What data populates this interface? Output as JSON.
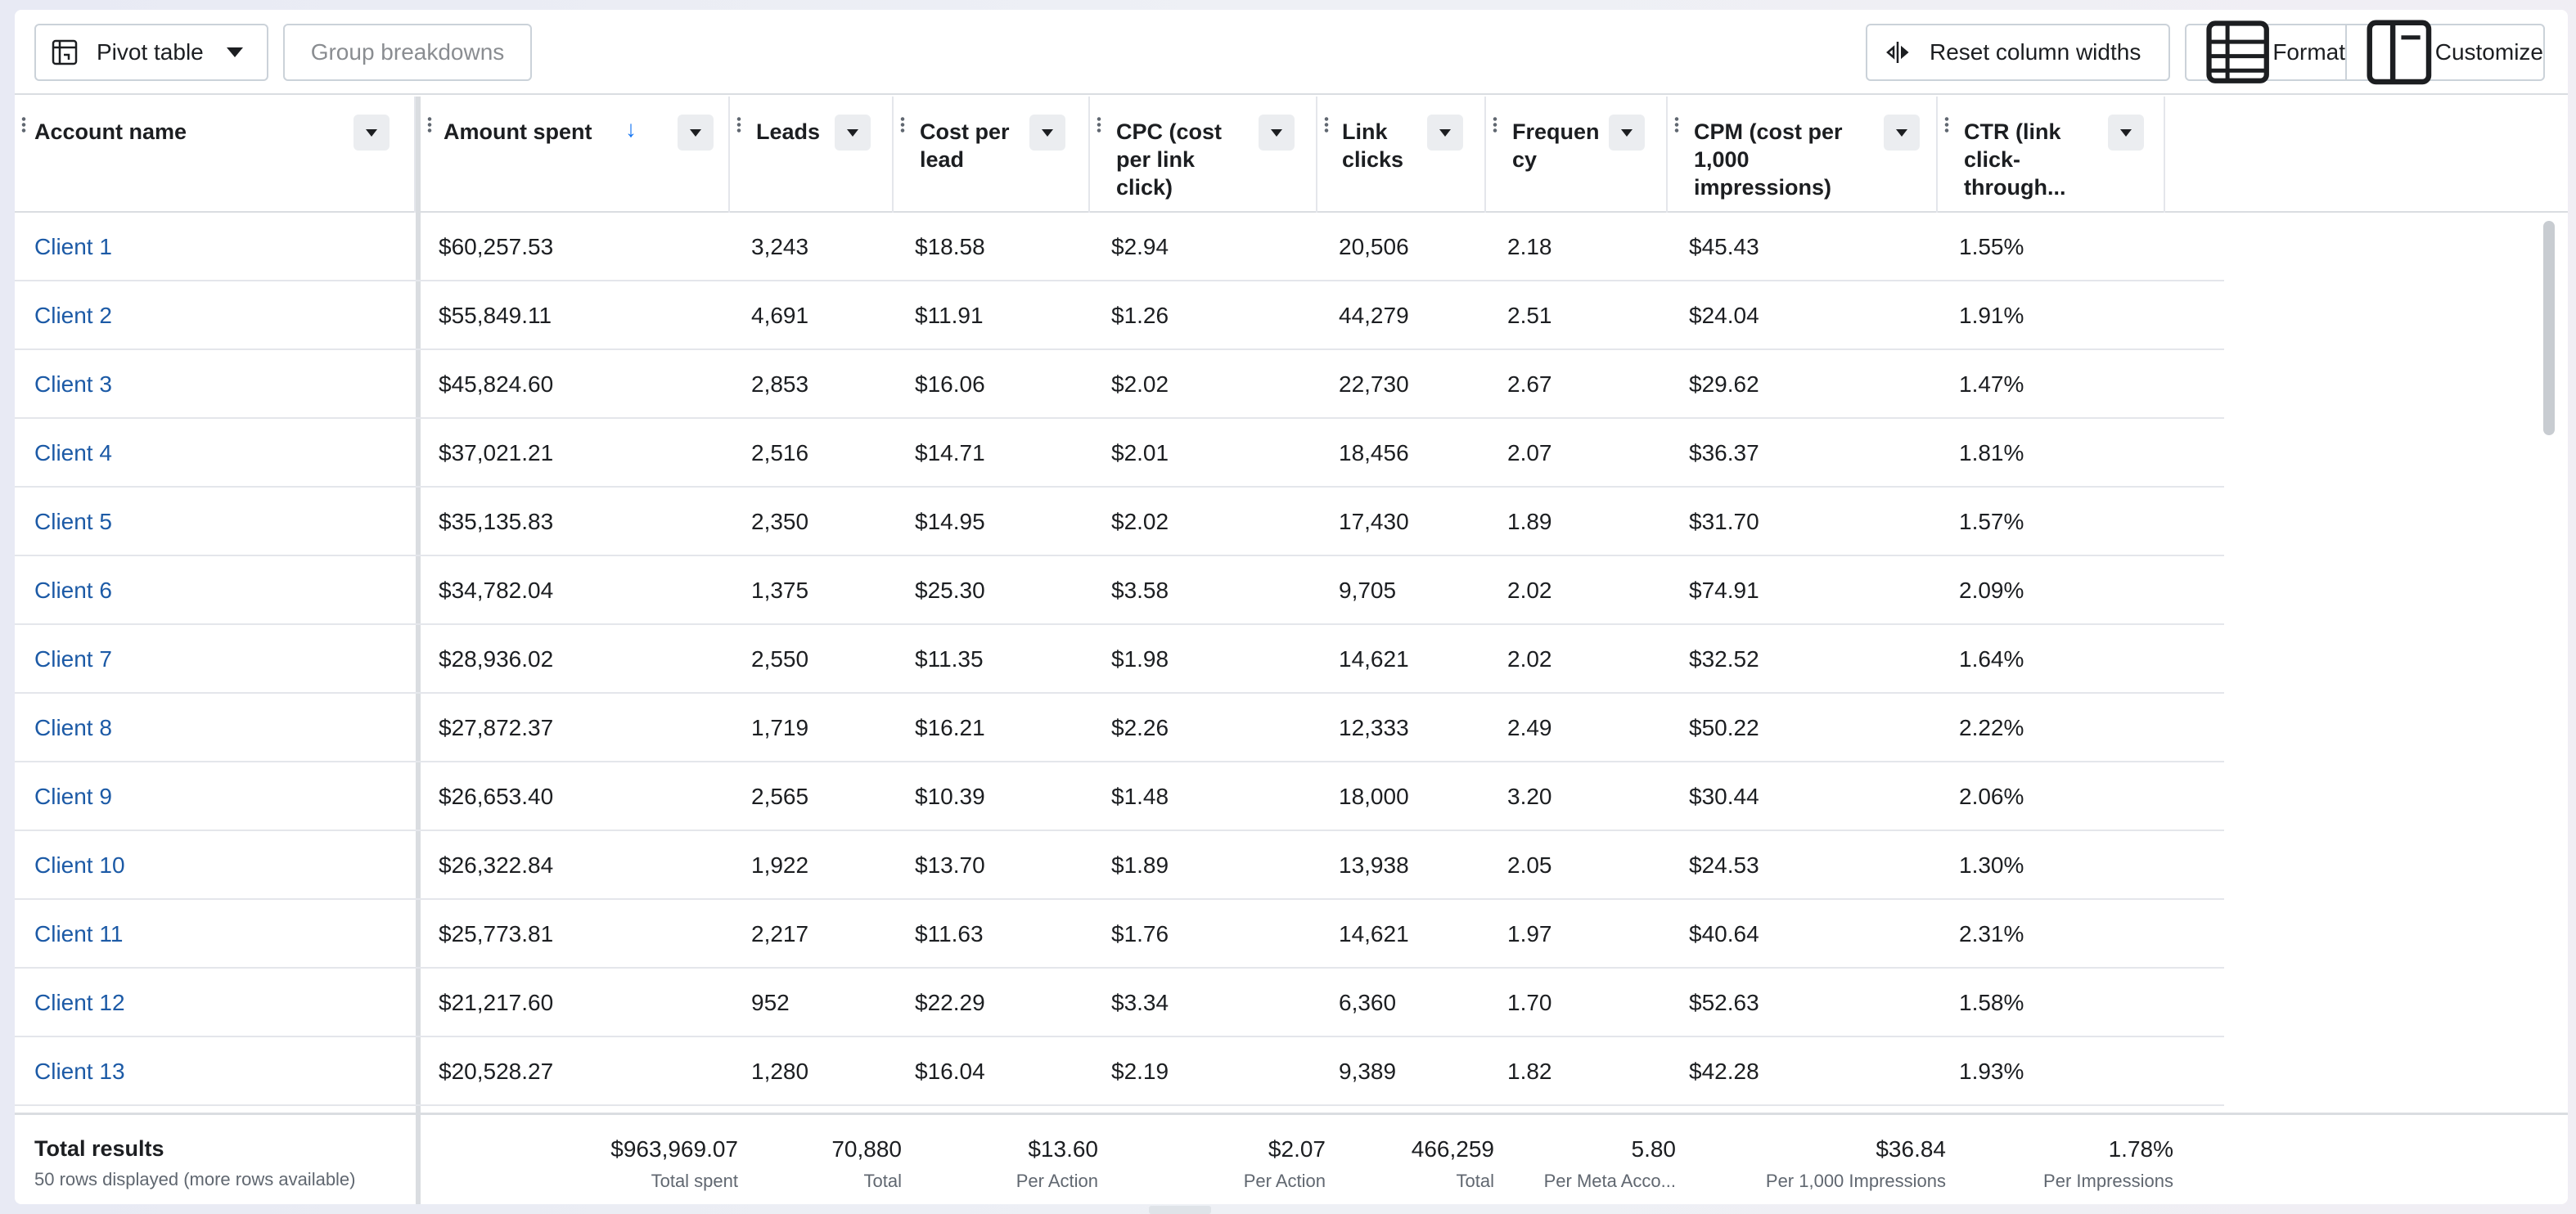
{
  "toolbar": {
    "pivot_label": "Pivot table",
    "group_label": "Group breakdowns",
    "reset_label": "Reset column widths",
    "format_label": "Format",
    "customize_label": "Customize"
  },
  "columns": [
    {
      "label": "Account name"
    },
    {
      "label": "Amount spent"
    },
    {
      "label": "Leads"
    },
    {
      "label": "Cost per lead"
    },
    {
      "label": "CPC (cost per link click)"
    },
    {
      "label": "Link clicks"
    },
    {
      "label": "Frequency"
    },
    {
      "label": "CPM (cost per 1,000 impressions)"
    },
    {
      "label": "CTR (link click-through..."
    }
  ],
  "sort": {
    "column": "Amount spent",
    "direction": "descending"
  },
  "rows": [
    {
      "name": "Client 1",
      "amount": "$60,257.53",
      "leads": "3,243",
      "cpl": "$18.58",
      "cpc": "$2.94",
      "clicks": "20,506",
      "freq": "2.18",
      "cpm": "$45.43",
      "ctr": "1.55%"
    },
    {
      "name": "Client 2",
      "amount": "$55,849.11",
      "leads": "4,691",
      "cpl": "$11.91",
      "cpc": "$1.26",
      "clicks": "44,279",
      "freq": "2.51",
      "cpm": "$24.04",
      "ctr": "1.91%"
    },
    {
      "name": "Client 3",
      "amount": "$45,824.60",
      "leads": "2,853",
      "cpl": "$16.06",
      "cpc": "$2.02",
      "clicks": "22,730",
      "freq": "2.67",
      "cpm": "$29.62",
      "ctr": "1.47%"
    },
    {
      "name": "Client 4",
      "amount": "$37,021.21",
      "leads": "2,516",
      "cpl": "$14.71",
      "cpc": "$2.01",
      "clicks": "18,456",
      "freq": "2.07",
      "cpm": "$36.37",
      "ctr": "1.81%"
    },
    {
      "name": "Client 5",
      "amount": "$35,135.83",
      "leads": "2,350",
      "cpl": "$14.95",
      "cpc": "$2.02",
      "clicks": "17,430",
      "freq": "1.89",
      "cpm": "$31.70",
      "ctr": "1.57%"
    },
    {
      "name": "Client 6",
      "amount": "$34,782.04",
      "leads": "1,375",
      "cpl": "$25.30",
      "cpc": "$3.58",
      "clicks": "9,705",
      "freq": "2.02",
      "cpm": "$74.91",
      "ctr": "2.09%"
    },
    {
      "name": "Client 7",
      "amount": "$28,936.02",
      "leads": "2,550",
      "cpl": "$11.35",
      "cpc": "$1.98",
      "clicks": "14,621",
      "freq": "2.02",
      "cpm": "$32.52",
      "ctr": "1.64%"
    },
    {
      "name": "Client 8",
      "amount": "$27,872.37",
      "leads": "1,719",
      "cpl": "$16.21",
      "cpc": "$2.26",
      "clicks": "12,333",
      "freq": "2.49",
      "cpm": "$50.22",
      "ctr": "2.22%"
    },
    {
      "name": "Client 9",
      "amount": "$26,653.40",
      "leads": "2,565",
      "cpl": "$10.39",
      "cpc": "$1.48",
      "clicks": "18,000",
      "freq": "3.20",
      "cpm": "$30.44",
      "ctr": "2.06%"
    },
    {
      "name": "Client 10",
      "amount": "$26,322.84",
      "leads": "1,922",
      "cpl": "$13.70",
      "cpc": "$1.89",
      "clicks": "13,938",
      "freq": "2.05",
      "cpm": "$24.53",
      "ctr": "1.30%"
    },
    {
      "name": "Client 11",
      "amount": "$25,773.81",
      "leads": "2,217",
      "cpl": "$11.63",
      "cpc": "$1.76",
      "clicks": "14,621",
      "freq": "1.97",
      "cpm": "$40.64",
      "ctr": "2.31%"
    },
    {
      "name": "Client 12",
      "amount": "$21,217.60",
      "leads": "952",
      "cpl": "$22.29",
      "cpc": "$3.34",
      "clicks": "6,360",
      "freq": "1.70",
      "cpm": "$52.63",
      "ctr": "1.58%"
    },
    {
      "name": "Client 13",
      "amount": "$20,528.27",
      "leads": "1,280",
      "cpl": "$16.04",
      "cpc": "$2.19",
      "clicks": "9,389",
      "freq": "1.82",
      "cpm": "$42.28",
      "ctr": "1.93%"
    }
  ],
  "totals": {
    "title": "Total results",
    "subtitle": "50 rows displayed (more rows available)",
    "cells": [
      {
        "value": "$963,969.07",
        "label": "Total spent"
      },
      {
        "value": "70,880",
        "label": "Total"
      },
      {
        "value": "$13.60",
        "label": "Per Action"
      },
      {
        "value": "$2.07",
        "label": "Per Action"
      },
      {
        "value": "466,259",
        "label": "Total"
      },
      {
        "value": "5.80",
        "label": "Per Meta Acco..."
      },
      {
        "value": "$36.84",
        "label": "Per 1,000 Impressions"
      },
      {
        "value": "1.78%",
        "label": "Per Impressions"
      }
    ]
  },
  "colors": {
    "link": "#1c5aa6",
    "sort_arrow": "#1877f2",
    "border": "#dadde1"
  }
}
